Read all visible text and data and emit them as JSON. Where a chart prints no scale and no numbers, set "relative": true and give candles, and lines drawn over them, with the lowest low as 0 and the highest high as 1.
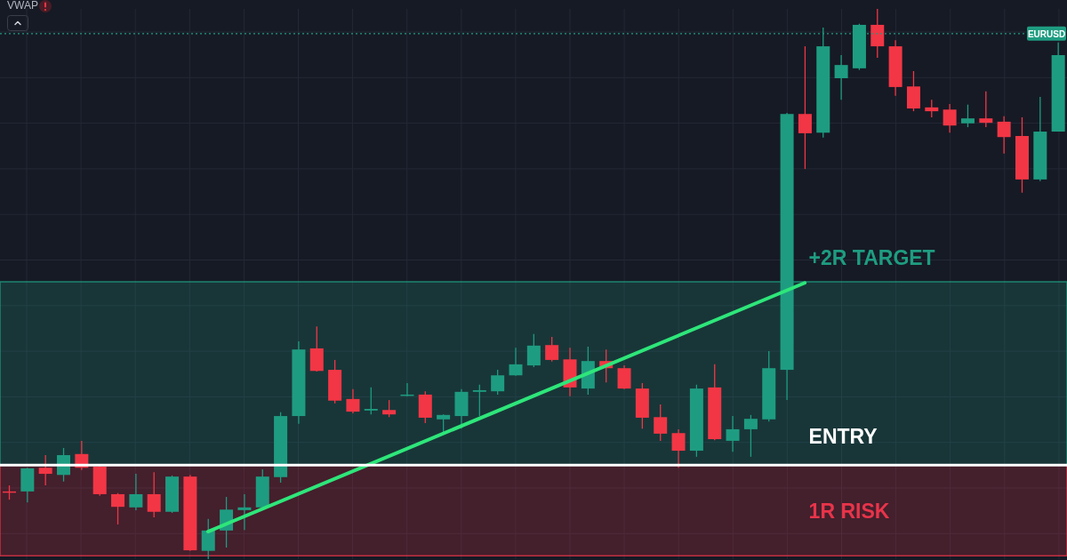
{
  "chart_data": {
    "type": "candlestick",
    "relative": true,
    "grid": true,
    "categories": [
      null,
      null,
      null,
      null,
      null,
      null,
      null,
      null,
      null,
      null,
      null,
      null,
      null,
      null,
      null,
      null,
      null,
      null,
      null,
      null,
      null,
      null,
      null,
      null,
      null,
      null,
      null,
      null,
      null,
      null,
      null,
      null,
      null,
      null,
      null,
      null,
      null,
      null,
      null,
      null,
      null,
      null,
      null,
      null,
      null,
      null,
      null,
      null,
      null,
      null,
      null,
      null,
      null,
      null,
      null,
      null,
      null,
      null,
      null
    ],
    "ohlc": [
      [
        0.123,
        0.134,
        0.108,
        0.122
      ],
      [
        0.123,
        0.166,
        0.103,
        0.165
      ],
      [
        0.166,
        0.189,
        0.134,
        0.155
      ],
      [
        0.153,
        0.202,
        0.141,
        0.189
      ],
      [
        0.191,
        0.215,
        0.162,
        0.166
      ],
      [
        0.168,
        0.17,
        0.115,
        0.118
      ],
      [
        0.118,
        0.12,
        0.063,
        0.095
      ],
      [
        0.094,
        0.155,
        0.089,
        0.118
      ],
      [
        0.118,
        0.158,
        0.076,
        0.086
      ],
      [
        0.086,
        0.152,
        0.084,
        0.15
      ],
      [
        0.15,
        0.153,
        0.015,
        0.016
      ],
      [
        0.015,
        0.073,
        0,
        0.052
      ],
      [
        0.052,
        0.113,
        0.021,
        0.09
      ],
      [
        0.089,
        0.118,
        0.053,
        0.094
      ],
      [
        0.094,
        0.163,
        0.092,
        0.15
      ],
      [
        0.149,
        0.267,
        0.139,
        0.26
      ],
      [
        0.26,
        0.396,
        0.246,
        0.381
      ],
      [
        0.383,
        0.423,
        0.341,
        0.342
      ],
      [
        0.344,
        0.362,
        0.283,
        0.288
      ],
      [
        0.291,
        0.309,
        0.265,
        0.268
      ],
      [
        0.27,
        0.312,
        0.263,
        0.273
      ],
      [
        0.271,
        0.289,
        0.258,
        0.263
      ],
      [
        0.297,
        0.32,
        0.296,
        0.299
      ],
      [
        0.299,
        0.305,
        0.247,
        0.257
      ],
      [
        0.254,
        0.263,
        0.231,
        0.262
      ],
      [
        0.26,
        0.309,
        0.237,
        0.304
      ],
      [
        0.304,
        0.317,
        0.26,
        0.307
      ],
      [
        0.305,
        0.344,
        0.299,
        0.334
      ],
      [
        0.334,
        0.384,
        0.333,
        0.354
      ],
      [
        0.352,
        0.409,
        0.349,
        0.388
      ],
      [
        0.389,
        0.404,
        0.359,
        0.362
      ],
      [
        0.363,
        0.384,
        0.296,
        0.312
      ],
      [
        0.31,
        0.386,
        0.299,
        0.36
      ],
      [
        0.36,
        0.381,
        0.321,
        0.347
      ],
      [
        0.347,
        0.352,
        0.309,
        0.31
      ],
      [
        0.31,
        0.32,
        0.237,
        0.257
      ],
      [
        0.258,
        0.281,
        0.215,
        0.228
      ],
      [
        0.229,
        0.236,
        0.166,
        0.197
      ],
      [
        0.197,
        0.317,
        0.186,
        0.31
      ],
      [
        0.312,
        0.354,
        0.216,
        0.218
      ],
      [
        0.215,
        0.26,
        0.195,
        0.236
      ],
      [
        0.236,
        0.262,
        0.186,
        0.255
      ],
      [
        0.254,
        0.378,
        0.25,
        0.347
      ],
      [
        0.344,
        0.811,
        0.289,
        0.809
      ],
      [
        0.809,
        0.932,
        0.709,
        0.774
      ],
      [
        0.775,
        0.966,
        0.766,
        0.932
      ],
      [
        0.874,
        0.916,
        0.835,
        0.898
      ],
      [
        0.892,
        0.973,
        0.889,
        0.971
      ],
      [
        0.971,
        1,
        0.911,
        0.932
      ],
      [
        0.932,
        0.943,
        0.842,
        0.858
      ],
      [
        0.859,
        0.887,
        0.814,
        0.819
      ],
      [
        0.821,
        0.835,
        0.803,
        0.814
      ],
      [
        0.817,
        0.827,
        0.775,
        0.788
      ],
      [
        0.792,
        0.826,
        0.785,
        0.801
      ],
      [
        0.801,
        0.85,
        0.785,
        0.793
      ],
      [
        0.795,
        0.805,
        0.737,
        0.767
      ],
      [
        0.769,
        0.803,
        0.666,
        0.69
      ],
      [
        0.69,
        0.84,
        0.687,
        0.777
      ],
      [
        0.777,
        0.939,
        0.777,
        0.916
      ]
    ],
    "colors": [
      "#f23645",
      "#1e9c81",
      "#f23645",
      "#1e9c81",
      "#f23645",
      "#f23645",
      "#f23645",
      "#1e9c81",
      "#f23645",
      "#1e9c81",
      "#f23645",
      "#1e9c81",
      "#1e9c81",
      "#1e9c81",
      "#1e9c81",
      "#1e9c81",
      "#1e9c81",
      "#f23645",
      "#f23645",
      "#f23645",
      "#1e9c81",
      "#f23645",
      "#1e9c81",
      "#f23645",
      "#1e9c81",
      "#1e9c81",
      "#1e9c81",
      "#1e9c81",
      "#1e9c81",
      "#1e9c81",
      "#f23645",
      "#f23645",
      "#1e9c81",
      "#f23645",
      "#f23645",
      "#f23645",
      "#f23645",
      "#f23645",
      "#1e9c81",
      "#f23645",
      "#1e9c81",
      "#1e9c81",
      "#1e9c81",
      "#1e9c81",
      "#f23645",
      "#1e9c81",
      "#1e9c81",
      "#1e9c81",
      "#f23645",
      "#f23645",
      "#f23645",
      "#f23645",
      "#f23645",
      "#1e9c81",
      "#f23645",
      "#f23645",
      "#f23645",
      "#1e9c81",
      "#1e9c81"
    ],
    "series": [
      {
        "type": "line",
        "color": "#2ee67a",
        "line_style": "solid",
        "values": [
          null,
          null,
          null,
          null,
          null,
          null,
          null,
          null,
          null,
          null,
          null,
          0.05,
          null,
          null,
          null,
          null,
          null,
          null,
          null,
          null,
          null,
          null,
          null,
          null,
          null,
          null,
          null,
          null,
          null,
          null,
          null,
          null,
          null,
          null,
          null,
          null,
          null,
          null,
          null,
          null,
          null,
          null,
          null,
          null,
          0.502,
          null,
          null,
          null,
          null,
          null,
          null,
          null,
          null,
          null,
          null,
          null,
          null,
          null,
          null
        ]
      }
    ],
    "ref_lines": [
      {
        "axis": "y",
        "value": 0.171,
        "label": "ENTRY",
        "color": "#ffffff",
        "line_style": "solid"
      },
      {
        "axis": "y",
        "value": 0.955,
        "label": "EURUSD",
        "color": "#1e9c81",
        "line_style": "dotted"
      }
    ],
    "bands": [
      {
        "axis": "y",
        "from": 0.171,
        "to": 0.504,
        "label": "+2R TARGET",
        "color": "#1e9c81"
      },
      {
        "axis": "y",
        "from": 0.006,
        "to": 0.171,
        "label": "1R RISK",
        "color": "#e8344a"
      }
    ],
    "annotations": [
      "VWAP"
    ]
  }
}
